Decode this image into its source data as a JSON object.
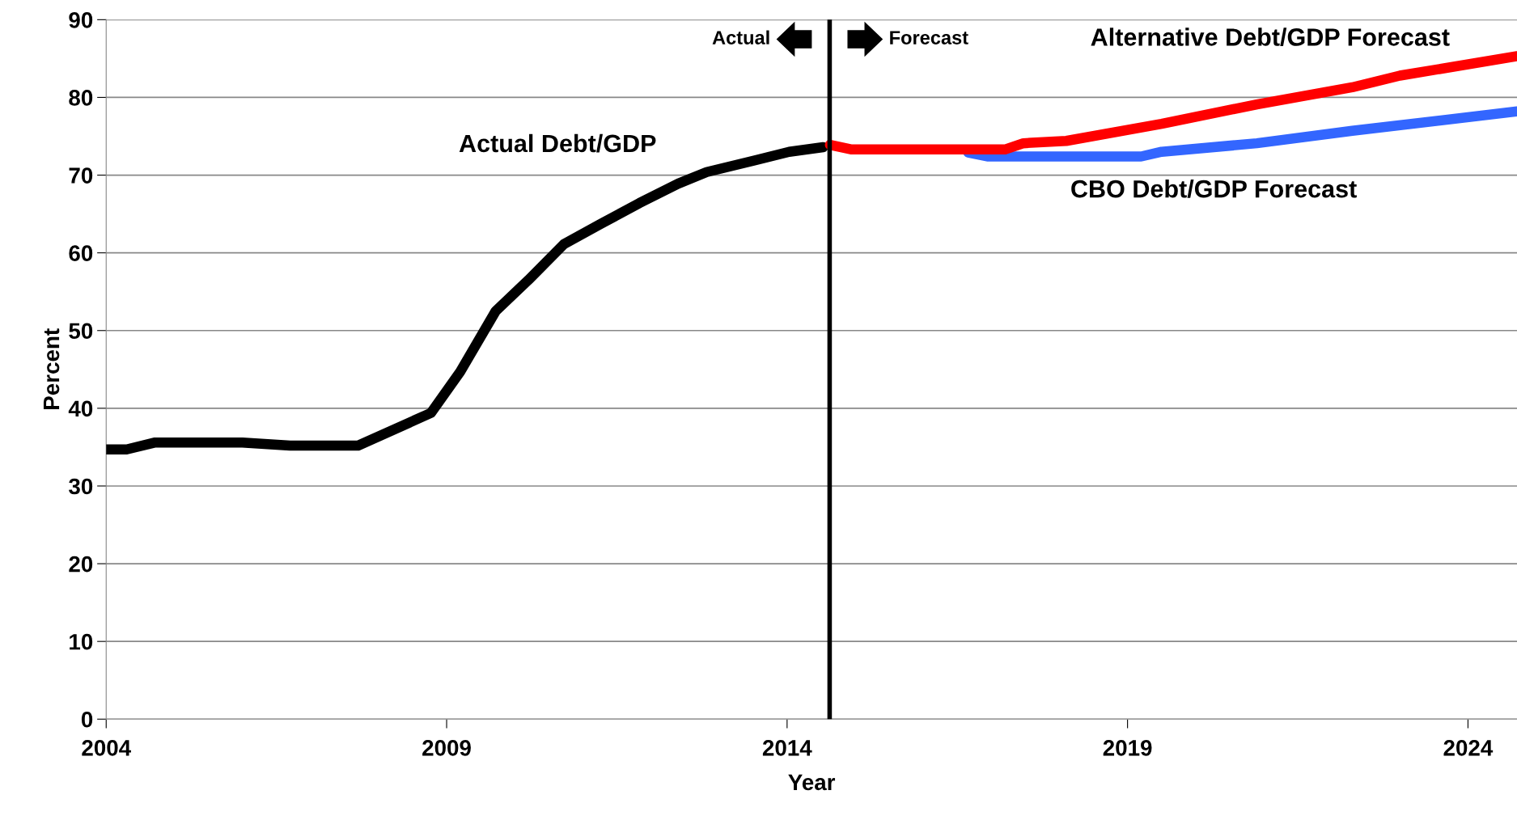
{
  "chart_data": {
    "type": "line",
    "xlabel": "Year",
    "ylabel": "Percent",
    "xlim": [
      2004,
      2024.72
    ],
    "xticks": [
      2004,
      2009,
      2014,
      2019,
      2024
    ],
    "ylim": [
      0,
      90
    ],
    "yticks": [
      0,
      10,
      20,
      30,
      40,
      50,
      60,
      70,
      80,
      90
    ],
    "grid": "y",
    "legend": false,
    "marker": "none",
    "line_style": "solid",
    "series": [
      {
        "name": "Actual Debt/GDP",
        "color": "#000000",
        "x": [
          2004,
          2004.3,
          2004.72,
          2006.0,
          2006.7,
          2007.7,
          2008.77,
          2009.2,
          2009.72,
          2010.2,
          2010.72,
          2011.26,
          2011.83,
          2012.4,
          2012.82,
          2013.53,
          2014.03,
          2014.53
        ],
        "values": [
          34.7,
          34.7,
          35.6,
          35.6,
          35.2,
          35.2,
          39.4,
          44.7,
          52.5,
          56.5,
          61.1,
          63.7,
          66.4,
          68.9,
          70.4,
          71.9,
          73.0,
          73.6
        ]
      },
      {
        "name": "CBO Debt/GDP Forecast",
        "color": "#3366ff",
        "x": [
          2016.66,
          2016.94,
          2019.2,
          2019.5,
          2020.9,
          2022.3,
          2024.72
        ],
        "values": [
          72.9,
          72.4,
          72.4,
          73.0,
          74.1,
          75.7,
          78.2
        ]
      },
      {
        "name": "Alternative Debt/GDP Forecast",
        "color": "#ff0000",
        "x": [
          2014.63,
          2014.95,
          2016.1,
          2017.2,
          2017.47,
          2018.1,
          2019.5,
          2020.9,
          2022.3,
          2023.0,
          2024.72
        ],
        "values": [
          73.9,
          73.3,
          73.3,
          73.3,
          74.1,
          74.4,
          76.6,
          79.1,
          81.3,
          82.8,
          85.3
        ]
      }
    ],
    "ref_lines": [
      {
        "axis": "x",
        "value": 2014.625,
        "color": "#000000",
        "line_style": "solid"
      }
    ],
    "annotations": [
      "Actual",
      "Forecast"
    ]
  }
}
